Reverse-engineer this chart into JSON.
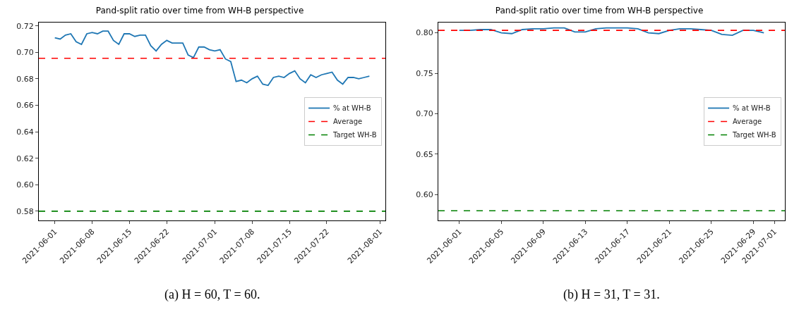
{
  "chart_data": [
    {
      "type": "line",
      "title": "Pand-split ratio over time from WH-B perspective",
      "annotations": [
        "(a) H = 60, T = 60."
      ],
      "x": [
        "2021-06-01",
        "2021-06-02",
        "2021-06-03",
        "2021-06-04",
        "2021-06-05",
        "2021-06-06",
        "2021-06-07",
        "2021-06-08",
        "2021-06-09",
        "2021-06-10",
        "2021-06-11",
        "2021-06-12",
        "2021-06-13",
        "2021-06-14",
        "2021-06-15",
        "2021-06-16",
        "2021-06-17",
        "2021-06-18",
        "2021-06-19",
        "2021-06-20",
        "2021-06-21",
        "2021-06-22",
        "2021-06-23",
        "2021-06-24",
        "2021-06-25",
        "2021-06-26",
        "2021-06-27",
        "2021-06-28",
        "2021-06-29",
        "2021-06-30",
        "2021-07-01",
        "2021-07-02",
        "2021-07-03",
        "2021-07-04",
        "2021-07-05",
        "2021-07-06",
        "2021-07-07",
        "2021-07-08",
        "2021-07-09",
        "2021-07-10",
        "2021-07-11",
        "2021-07-12",
        "2021-07-13",
        "2021-07-14",
        "2021-07-15",
        "2021-07-16",
        "2021-07-17",
        "2021-07-18",
        "2021-07-19",
        "2021-07-20",
        "2021-07-21",
        "2021-07-22",
        "2021-07-23",
        "2021-07-24",
        "2021-07-25",
        "2021-07-26",
        "2021-07-27",
        "2021-07-28",
        "2021-07-29",
        "2021-07-30"
      ],
      "series": [
        {
          "name": "% at WH-B",
          "color": "#1f77b4",
          "values": [
            0.711,
            0.71,
            0.713,
            0.714,
            0.708,
            0.706,
            0.714,
            0.715,
            0.714,
            0.716,
            0.716,
            0.709,
            0.706,
            0.714,
            0.714,
            0.712,
            0.713,
            0.713,
            0.705,
            0.701,
            0.706,
            0.709,
            0.707,
            0.707,
            0.707,
            0.698,
            0.696,
            0.704,
            0.704,
            0.702,
            0.701,
            0.702,
            0.695,
            0.693,
            0.678,
            0.679,
            0.677,
            0.68,
            0.682,
            0.676,
            0.675,
            0.681,
            0.682,
            0.681,
            0.684,
            0.686,
            0.68,
            0.677,
            0.683,
            0.681,
            0.683,
            0.684,
            0.685,
            0.679,
            0.676,
            0.681,
            0.681,
            0.68,
            0.681,
            0.682
          ]
        }
      ],
      "ref_lines": [
        {
          "axis": "y",
          "value": 0.6955,
          "label": "Average",
          "color": "#ff0000",
          "line_style": "dashed"
        },
        {
          "axis": "y",
          "value": 0.58,
          "label": "Target WH-B",
          "color": "#008000",
          "line_style": "dashed"
        }
      ],
      "xlim": [
        "2021-05-29",
        "2021-08-02"
      ],
      "xticks": [
        "2021-06-01",
        "2021-06-08",
        "2021-06-15",
        "2021-06-22",
        "2021-07-01",
        "2021-07-08",
        "2021-07-15",
        "2021-07-22",
        "2021-08-01"
      ],
      "ylim": [
        0.573,
        0.7225
      ],
      "yticks": [
        0.58,
        {
          "value": 0.6,
          "label": "0.60"
        },
        0.62,
        0.64,
        0.66,
        0.68,
        {
          "value": 0.7,
          "label": "0.70"
        },
        0.72
      ],
      "grid": false,
      "legend": "right",
      "line_style": "solid",
      "marker": "none"
    },
    {
      "type": "line",
      "title": "Pand-split ratio over time from WH-B perspective",
      "annotations": [
        "(b) H = 31, T = 31."
      ],
      "x": [
        "2021-06-01",
        "2021-06-02",
        "2021-06-03",
        "2021-06-04",
        "2021-06-05",
        "2021-06-06",
        "2021-06-07",
        "2021-06-08",
        "2021-06-09",
        "2021-06-10",
        "2021-06-11",
        "2021-06-12",
        "2021-06-13",
        "2021-06-14",
        "2021-06-15",
        "2021-06-16",
        "2021-06-17",
        "2021-06-18",
        "2021-06-19",
        "2021-06-20",
        "2021-06-21",
        "2021-06-22",
        "2021-06-23",
        "2021-06-24",
        "2021-06-25",
        "2021-06-26",
        "2021-06-27",
        "2021-06-28",
        "2021-06-29",
        "2021-06-30"
      ],
      "series": [
        {
          "name": "% at WH-B",
          "color": "#1f77b4",
          "values": [
            0.803,
            0.803,
            0.804,
            0.804,
            0.8,
            0.799,
            0.804,
            0.805,
            0.805,
            0.806,
            0.806,
            0.801,
            0.801,
            0.805,
            0.806,
            0.806,
            0.806,
            0.805,
            0.8,
            0.799,
            0.803,
            0.805,
            0.805,
            0.804,
            0.803,
            0.798,
            0.797,
            0.803,
            0.803,
            0.8
          ]
        }
      ],
      "ref_lines": [
        {
          "axis": "y",
          "value": 0.803,
          "label": "Average",
          "color": "#ff0000",
          "line_style": "dashed"
        },
        {
          "axis": "y",
          "value": 0.58,
          "label": "Target WH-B",
          "color": "#008000",
          "line_style": "dashed"
        }
      ],
      "xlim": [
        "2021-05-30",
        "2021-07-02"
      ],
      "xticks": [
        "2021-06-01",
        "2021-06-05",
        "2021-06-09",
        "2021-06-13",
        "2021-06-17",
        "2021-06-21",
        "2021-06-25",
        "2021-06-29",
        "2021-07-01"
      ],
      "ylim": [
        0.568,
        0.8127
      ],
      "yticks": [
        {
          "value": 0.6,
          "label": "0.60"
        },
        0.65,
        {
          "value": 0.7,
          "label": "0.70"
        },
        0.75,
        {
          "value": 0.8,
          "label": "0.80"
        }
      ],
      "grid": false,
      "legend": "right",
      "line_style": "solid",
      "marker": "none"
    }
  ]
}
